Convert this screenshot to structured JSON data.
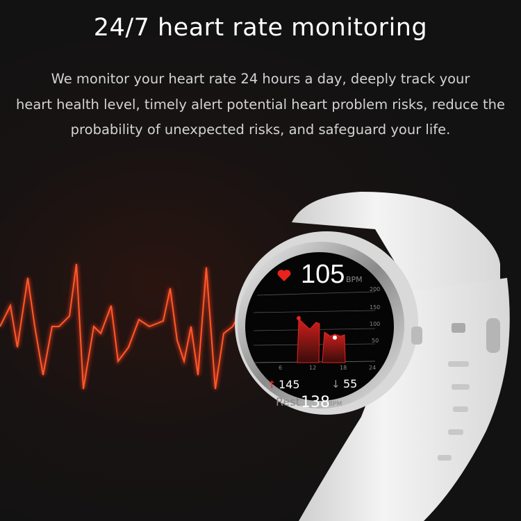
{
  "title": "24/7 heart rate monitoring",
  "description_lines": [
    "We monitor your heart rate 24 hours a day, deeply track your",
    "heart health level, timely alert potential heart problem risks, reduce the",
    "probability of unexpected risks, and safeguard your life."
  ],
  "watch_screen": {
    "heart_icon": "heart-icon",
    "current_bpm": "105",
    "bpm_unit": "BPM",
    "y_ticks": [
      "200",
      "150",
      "100",
      "50"
    ],
    "x_ticks": [
      "6",
      "12",
      "18",
      "24"
    ],
    "max_bpm": "145",
    "min_bpm": "55",
    "rest_label": "Rest",
    "rest_bpm": "138",
    "rest_unit": "BPM"
  },
  "colors": {
    "background": "#141414",
    "accent_red": "#e8231e",
    "band": "#eeeeee"
  }
}
